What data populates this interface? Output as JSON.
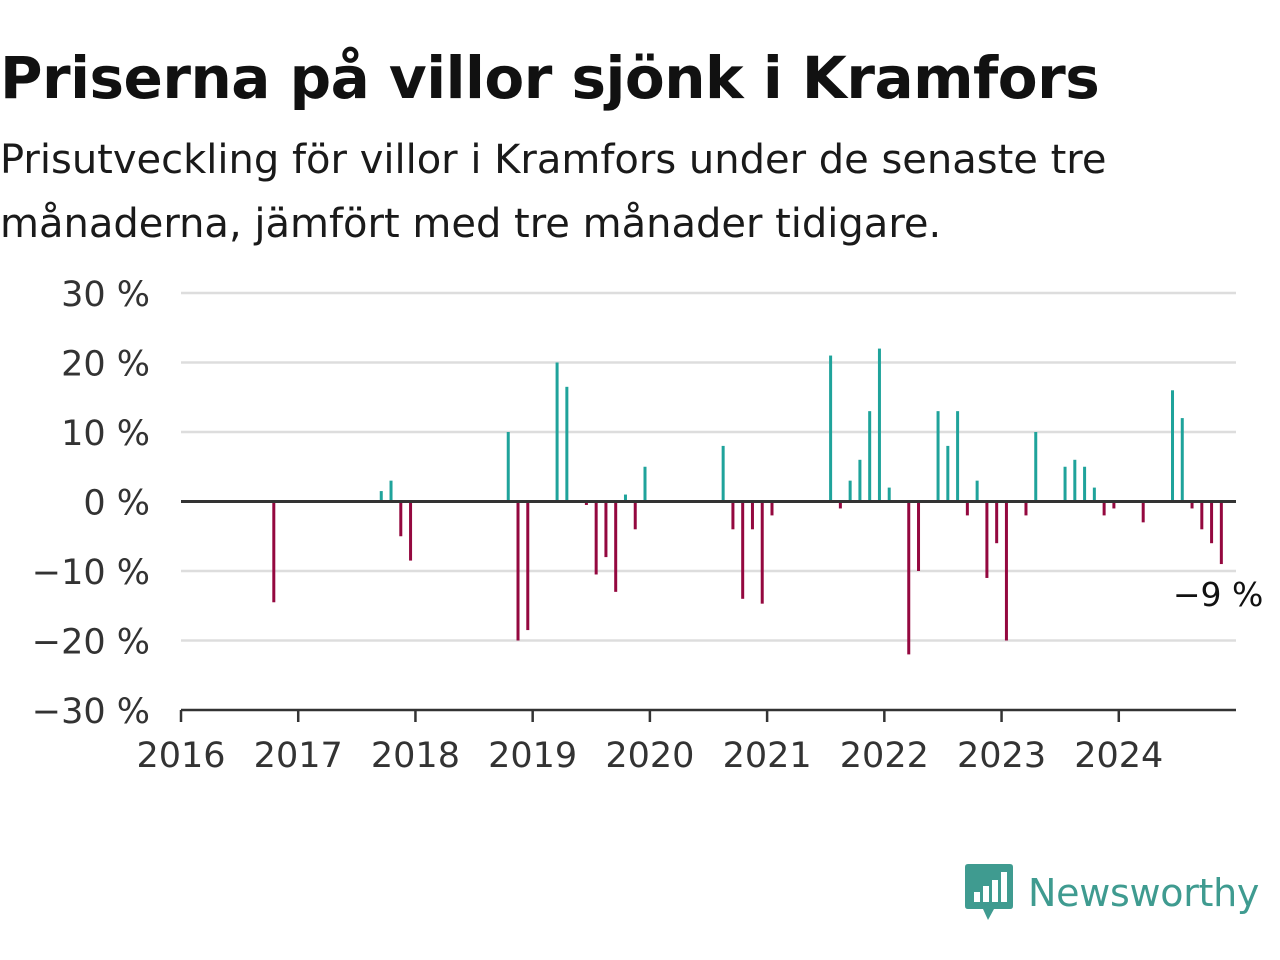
{
  "title": "Priserna på villor sjönk i Kramfors",
  "subtitle": "Prisutveckling för villor i Kramfors under de senaste tre månaderna, jämfört med tre månader tidigare.",
  "brand": {
    "name": "Newsworthy",
    "icon": "newsworthy-logo-icon",
    "color": "#3f9b90"
  },
  "colors": {
    "positive": "#1fa39b",
    "negative": "#94083f",
    "grid": "#dddddd",
    "axis": "#333333",
    "text": "#333333"
  },
  "chart_data": {
    "type": "bar",
    "title": "Priserna på villor sjönk i Kramfors",
    "xlabel": "",
    "ylabel": "",
    "ylim": [
      -30,
      30
    ],
    "y_ticks": [
      30,
      20,
      10,
      0,
      -10,
      -20,
      -30
    ],
    "y_tick_labels": [
      "30 %",
      "20 %",
      "10 %",
      "0 %",
      "−10 %",
      "−20 %",
      "−30 %"
    ],
    "x_range": [
      "2016-01",
      "2024-12"
    ],
    "x_tick_labels": [
      "2016",
      "2017",
      "2018",
      "2019",
      "2020",
      "2021",
      "2022",
      "2023",
      "2024"
    ],
    "grid": true,
    "unit": "%",
    "x": [
      "2016-10",
      "2017-09",
      "2017-10",
      "2017-11",
      "2017-12",
      "2018-10",
      "2018-11",
      "2018-12",
      "2019-03",
      "2019-04",
      "2019-06",
      "2019-07",
      "2019-08",
      "2019-09",
      "2019-10",
      "2019-11",
      "2019-12",
      "2020-08",
      "2020-09",
      "2020-10",
      "2020-11",
      "2020-12",
      "2021-01",
      "2021-07",
      "2021-08",
      "2021-09",
      "2021-10",
      "2021-11",
      "2021-12",
      "2022-01",
      "2022-03",
      "2022-04",
      "2022-06",
      "2022-07",
      "2022-08",
      "2022-09",
      "2022-10",
      "2022-11",
      "2022-12",
      "2023-01",
      "2023-03",
      "2023-04",
      "2023-07",
      "2023-08",
      "2023-09",
      "2023-10",
      "2023-11",
      "2023-12",
      "2024-03",
      "2024-06",
      "2024-07",
      "2024-08",
      "2024-09",
      "2024-10",
      "2024-11"
    ],
    "values": [
      -14.5,
      1.5,
      3,
      -5,
      -8.5,
      10,
      -20,
      -18.5,
      20,
      16.5,
      -0.5,
      -10.5,
      -8,
      -13,
      1,
      -4,
      5,
      8,
      -4,
      -14,
      -4,
      -14.7,
      -2,
      21,
      -1,
      3,
      6,
      13,
      22,
      2,
      -22,
      -10,
      13,
      8,
      13,
      -2,
      3,
      -11,
      -6,
      -20,
      -2,
      10,
      5,
      6,
      5,
      2,
      -2,
      -1,
      -3,
      16,
      12,
      -1,
      -4,
      -6,
      -9
    ],
    "annotation": {
      "x": "2024-11",
      "label": "−9 %"
    }
  }
}
